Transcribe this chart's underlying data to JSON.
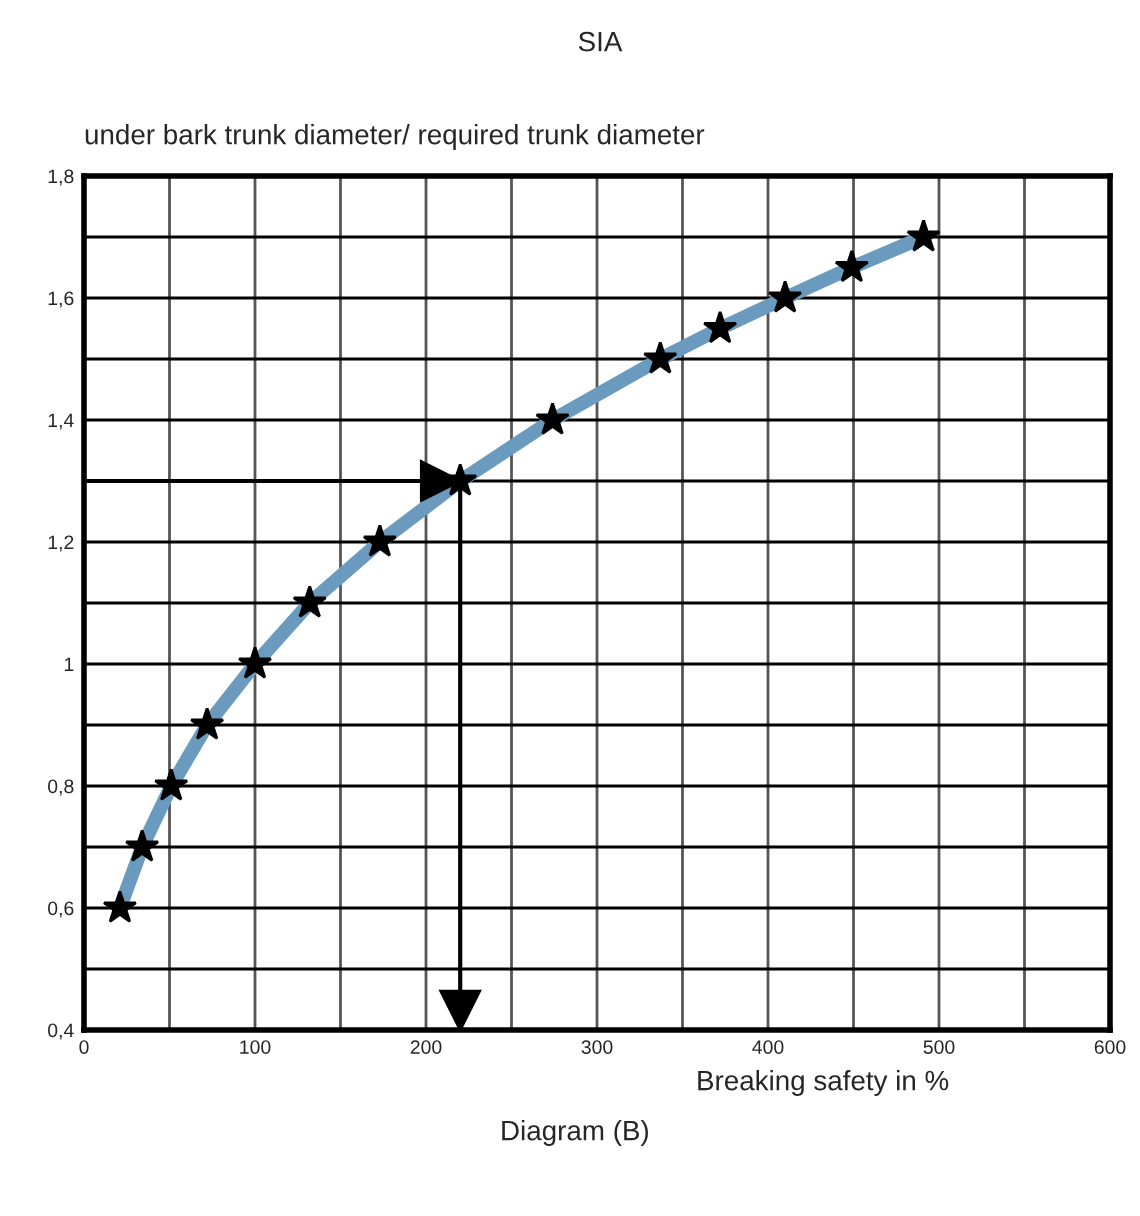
{
  "chart_data": {
    "type": "line",
    "title": "SIA",
    "ylabel": "under bark trunk diameter/ required trunk diameter",
    "xlabel": "Breaking safety in %",
    "annotations": [
      "Diagram (B)"
    ],
    "x": [
      21,
      34,
      51,
      72,
      100,
      132,
      173,
      220,
      274,
      337,
      372,
      410,
      449,
      491
    ],
    "series": [
      {
        "color": "#6a9bbf",
        "values": [
          0.6,
          0.7,
          0.8,
          0.9,
          1.0,
          1.1,
          1.2,
          1.3,
          1.4,
          1.5,
          1.55,
          1.6,
          1.65,
          1.7
        ]
      }
    ],
    "xlim": [
      0,
      600
    ],
    "xticks": [
      0,
      100,
      200,
      300,
      400,
      500,
      600
    ],
    "ylim": [
      0.4,
      1.8
    ],
    "yticks": [
      {
        "value": 0.4,
        "label": "0,4"
      },
      {
        "value": 0.6,
        "label": "0,6"
      },
      {
        "value": 0.8,
        "label": "0,8"
      },
      {
        "value": 1.0,
        "label": "1"
      },
      {
        "value": 1.2,
        "label": "1,2"
      },
      {
        "value": 1.4,
        "label": "1,4"
      },
      {
        "value": 1.6,
        "label": "1,6"
      },
      {
        "value": 1.8,
        "label": "1,8"
      }
    ],
    "ref_lines": [
      {
        "axis": "y",
        "value": 1.3,
        "color": "#000000"
      },
      {
        "axis": "x",
        "value": 220,
        "color": "#000000"
      }
    ],
    "grid": true,
    "marker": "star",
    "line_style": "solid",
    "legend": false
  }
}
